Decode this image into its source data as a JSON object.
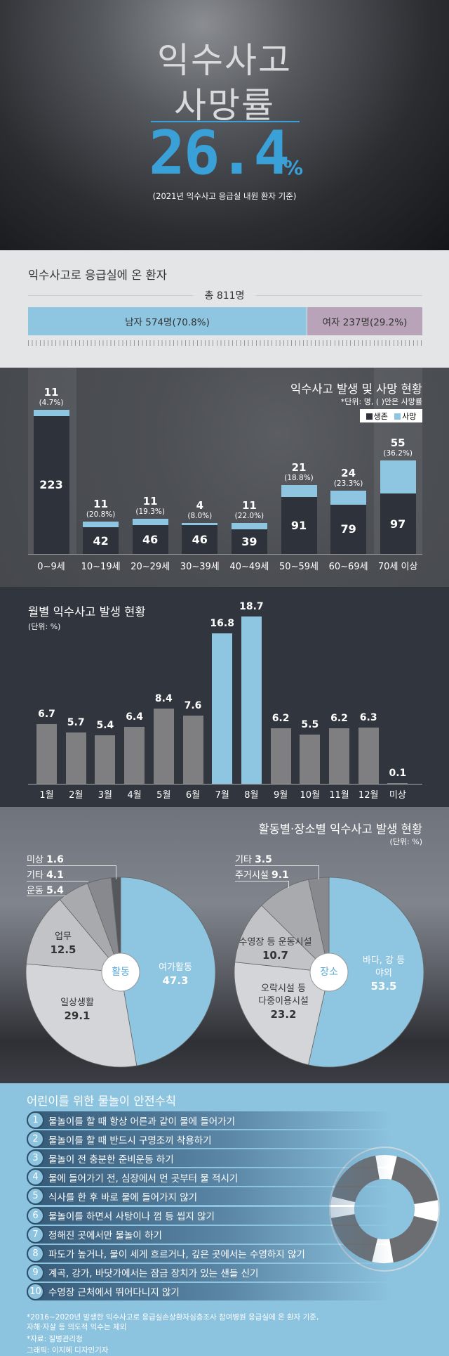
{
  "hero": {
    "title_line1": "익수사고",
    "title_line2": "사망률",
    "value": "26.4",
    "unit": "%",
    "subtitle": "(2021년 익수사고 응급실 내원 환자 기준)",
    "accent_color": "#3aa0d8"
  },
  "patients": {
    "title": "익수사고로 응급실에 온 환자",
    "total": "총 811명",
    "male": {
      "label": "남자 574명(70.8%)",
      "count": 574,
      "percent": 70.8,
      "color": "#8ec5e0"
    },
    "female": {
      "label": "여자 237명(29.2%)",
      "count": 237,
      "percent": 29.2,
      "color": "#b9a3b8"
    }
  },
  "chart_data": [
    {
      "type": "bar",
      "stacked": true,
      "title": "익수사고 발생 및 사망 현황",
      "note": "*단위: 명, ( )안은 사망률",
      "categories": [
        "0~9세",
        "10~19세",
        "20~29세",
        "30~39세",
        "40~49세",
        "50~59세",
        "60~69세",
        "70세 이상"
      ],
      "series": [
        {
          "name": "생존",
          "color": "#2e323b",
          "values": [
            223,
            42,
            46,
            46,
            39,
            91,
            79,
            97
          ]
        },
        {
          "name": "사망",
          "color": "#8ec5e0",
          "values": [
            11,
            11,
            11,
            4,
            11,
            21,
            24,
            55
          ]
        }
      ],
      "death_rates": [
        "(4.7%)",
        "(20.8%)",
        "(19.3%)",
        "(8.0%)",
        "(22.0%)",
        "(18.8%)",
        "(23.3%)",
        "(36.2%)"
      ],
      "legend": "top-right"
    },
    {
      "type": "bar",
      "title": "월별 익수사고 발생 현황",
      "unit": "(단위: %)",
      "categories": [
        "1월",
        "2월",
        "3월",
        "4월",
        "5월",
        "6월",
        "7월",
        "8월",
        "9월",
        "10월",
        "11월",
        "12월",
        "미상"
      ],
      "values": [
        6.7,
        5.7,
        5.4,
        6.4,
        8.4,
        7.6,
        16.8,
        18.7,
        6.2,
        5.5,
        6.2,
        6.3,
        0.1
      ],
      "highlighted": [
        "7월",
        "8월"
      ],
      "colors": {
        "default": "#7f7f82",
        "highlight": "#8ec5e0"
      }
    },
    {
      "type": "pie",
      "title": "활동별·장소별 익수사고 발생 현황",
      "unit": "(단위: %)",
      "center_label": "활동",
      "slices": [
        {
          "label": "여가활동",
          "value": 47.3,
          "color": "#8ec5e0"
        },
        {
          "label": "일상생활",
          "value": 29.1,
          "color": "#d4d5d8"
        },
        {
          "label": "업무",
          "value": 12.5,
          "color": "#c1c3c6"
        },
        {
          "label": "운동",
          "value": 5.4,
          "color": "#a8aaae"
        },
        {
          "label": "기타",
          "value": 4.1,
          "color": "#87898e"
        },
        {
          "label": "미상",
          "value": 1.6,
          "color": "#55575c"
        }
      ]
    },
    {
      "type": "pie",
      "center_label": "장소",
      "slices": [
        {
          "label": "바다, 강 등\n야외",
          "value": 53.5,
          "color": "#8ec5e0"
        },
        {
          "label": "오락시설 등\n다중이용시설",
          "value": 23.2,
          "color": "#d4d5d8"
        },
        {
          "label": "수영장 등 운동시설",
          "value": 10.7,
          "color": "#c1c3c6"
        },
        {
          "label": "주거시설",
          "value": 9.1,
          "color": "#a8aaae"
        },
        {
          "label": "기타",
          "value": 3.5,
          "color": "#87898e"
        }
      ]
    }
  ],
  "safety": {
    "title": "어린이를 위한 물놀이 안전수칙",
    "rules": [
      "물놀이를 할 때 항상 어른과 같이 물에 들어가기",
      "물놀이를 할 때 반드시 구명조끼 착용하기",
      "물놀이 전 충분한 준비운동 하기",
      "물에 들어가기 전, 심장에서 먼 곳부터 물 적시기",
      "식사를 한 후 바로 물에 들어가지 않기",
      "물놀이를 하면서 사탕이나 껌 등 씹지 않기",
      "정해진 곳에서만 물놀이 하기",
      "파도가 높거나, 물이 세게 흐르거나, 깊은 곳에서는 수영하지 않기",
      "계곡, 강가, 바닷가에서는 잠금 장치가 있는 샌들 신기",
      "수영장 근처에서 뛰어다니지 않기"
    ],
    "footnote1": "*2016~2020년 발생한 익수사고로 응급실손상환자심층조사 참여병원 응급실에 온 환자 기준,",
    "footnote2": "자해·자살 등 의도적 익수는 제외",
    "source": "*자료: 질병관리청",
    "credit": "그래픽: 이지혜 디자인기자"
  }
}
